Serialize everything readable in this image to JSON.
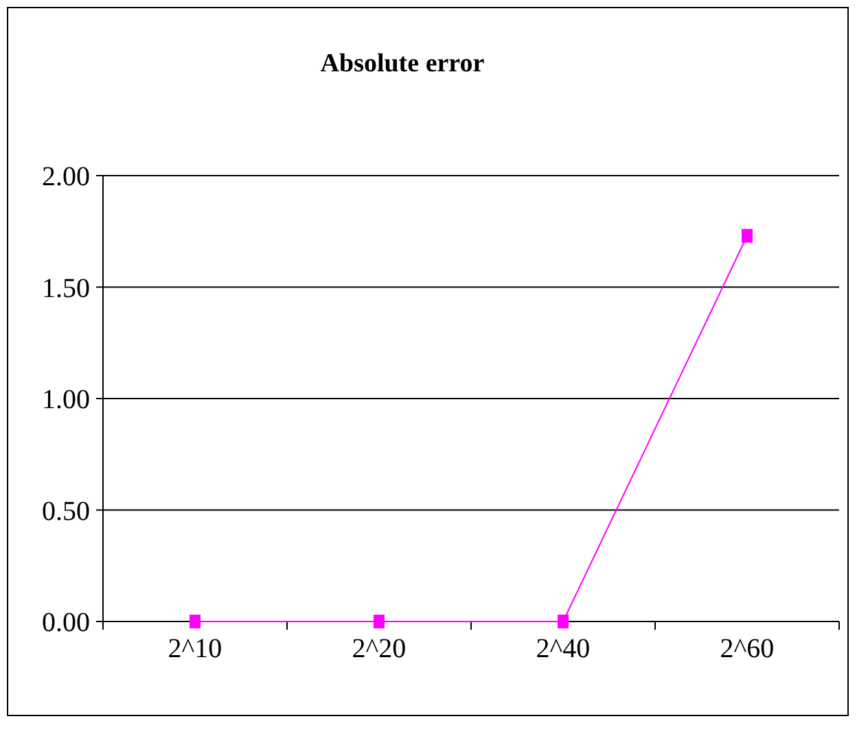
{
  "chart_data": {
    "type": "line",
    "title": "Absolute error",
    "categories": [
      "2^10",
      "2^20",
      "2^40",
      "2^60"
    ],
    "series": [
      {
        "color": "#ff00ff",
        "values": [
          0,
          0,
          0,
          1.73
        ]
      }
    ],
    "ylim": [
      0,
      2
    ],
    "yticks": [
      {
        "value": 0,
        "label": "0.00"
      },
      {
        "value": 0.5,
        "label": "0.50"
      },
      {
        "value": 1,
        "label": "1.00"
      },
      {
        "value": 1.5,
        "label": "1.50"
      },
      {
        "value": 2,
        "label": "2.00"
      }
    ],
    "grid": "y",
    "marker": "square",
    "line_style": "solid"
  }
}
